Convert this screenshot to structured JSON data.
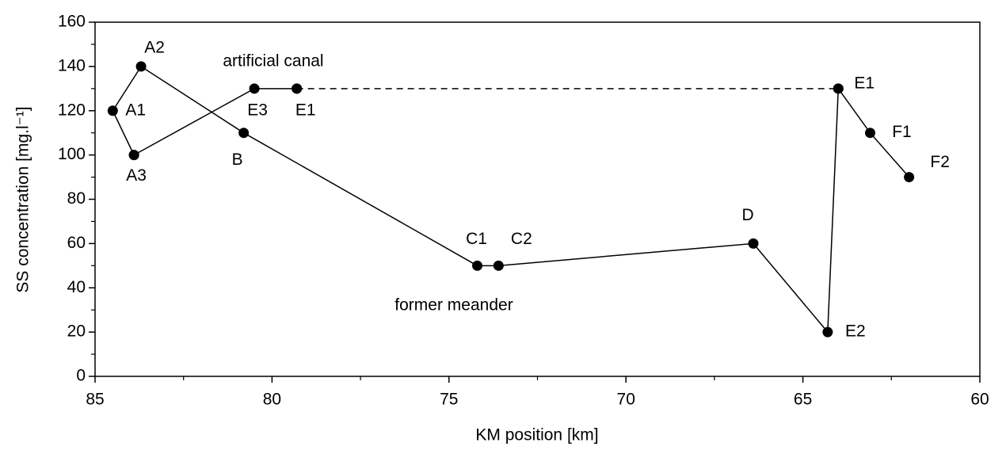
{
  "chart_data": {
    "type": "line",
    "x_label": "KM position [km]",
    "y_label": "SS concentration [mg.l⁻¹]",
    "xlim": [
      85,
      60
    ],
    "ylim": [
      0,
      160
    ],
    "xticks": [
      85,
      80,
      75,
      70,
      65,
      60
    ],
    "yticks": [
      0,
      20,
      40,
      60,
      80,
      100,
      120,
      140,
      160
    ],
    "xticks_minor": [
      82.5,
      77.5,
      72.5,
      67.5,
      62.5
    ],
    "yticks_minor": [
      10,
      30,
      50,
      70,
      90,
      110,
      130,
      150
    ],
    "color": "#000000",
    "series": [
      {
        "x": [
          83.9,
          84.5,
          83.7,
          80.8,
          74.2,
          73.6,
          66.4,
          64.3,
          64.0,
          63.1,
          62.0
        ],
        "values": [
          100,
          120,
          140,
          110,
          50,
          50,
          60,
          20,
          130,
          110,
          90
        ],
        "labels": [
          "A3",
          "A1",
          "A2",
          "B",
          "C1",
          "C2",
          "D",
          "E2",
          "E1",
          "F1",
          "F2"
        ],
        "dash": false
      },
      {
        "x": [
          83.9,
          80.5,
          79.3
        ],
        "values": [
          100,
          130,
          130
        ],
        "labels": [
          null,
          "E3",
          "E1"
        ],
        "dash": false
      },
      {
        "x": [
          79.3,
          64.0
        ],
        "values": [
          130,
          130
        ],
        "labels": [
          null,
          null
        ],
        "dash": true
      }
    ],
    "annotations": [
      "artificial canal",
      "former meander"
    ]
  }
}
